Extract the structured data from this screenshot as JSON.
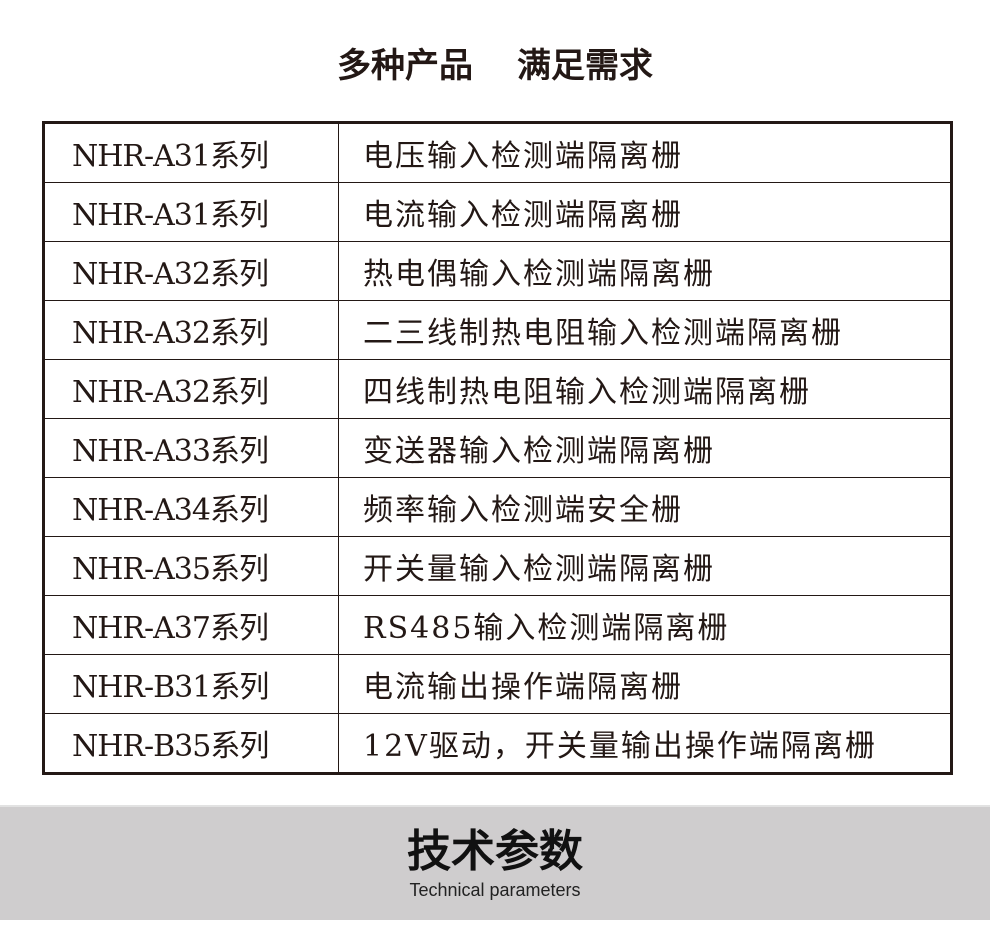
{
  "title": {
    "left": "多种产品",
    "right": "满足需求"
  },
  "rows": [
    {
      "model": "NHR-A31系列",
      "desc": "电压输入检测端隔离栅"
    },
    {
      "model": "NHR-A31系列",
      "desc": "电流输入检测端隔离栅"
    },
    {
      "model": "NHR-A32系列",
      "desc": "热电偶输入检测端隔离栅"
    },
    {
      "model": "NHR-A32系列",
      "desc": "二三线制热电阻输入检测端隔离栅"
    },
    {
      "model": "NHR-A32系列",
      "desc": "四线制热电阻输入检测端隔离栅"
    },
    {
      "model": "NHR-A33系列",
      "desc": "变送器输入检测端隔离栅"
    },
    {
      "model": "NHR-A34系列",
      "desc": "频率输入检测端安全栅"
    },
    {
      "model": "NHR-A35系列",
      "desc": "开关量输入检测端隔离栅"
    },
    {
      "model": "NHR-A37系列",
      "desc": "RS485输入检测端隔离栅"
    },
    {
      "model": "NHR-B31系列",
      "desc": "电流输出操作端隔离栅"
    },
    {
      "model": "NHR-B35系列",
      "desc": "12V驱动，开关量输出操作端隔离栅"
    }
  ],
  "section": {
    "title": "技术参数",
    "subtitle": "Technical parameters"
  }
}
